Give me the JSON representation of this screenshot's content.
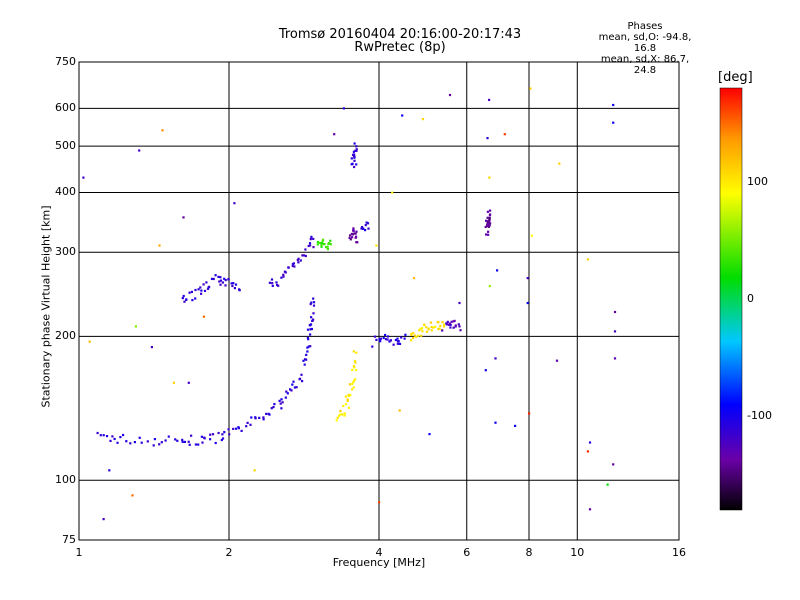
{
  "title_line1": "Tromsø 20160404 20:16:00-20:17:43",
  "title_line2": "RwPretec (8p)",
  "phases": {
    "heading": "Phases",
    "line_o": "mean, sd,O: -94.8, 16.8",
    "line_x": "mean, sd,X: 86.7, 24.8"
  },
  "colorbar": {
    "unit": "[deg]",
    "ticks": [
      "100",
      "0",
      "-100"
    ],
    "tick_values": [
      100,
      0,
      -100
    ],
    "range": [
      -180,
      180
    ]
  },
  "chart_data": {
    "type": "scatter",
    "xlabel": "Frequency [MHz]",
    "ylabel": "Stationary phase Virtual Height [km]",
    "xscale": "log",
    "yscale": "log",
    "xlim": [
      1,
      16
    ],
    "ylim": [
      75,
      750
    ],
    "x_ticks": [
      1,
      2,
      4,
      6,
      8,
      10,
      16
    ],
    "x_tick_labels": [
      "1",
      "2",
      "4",
      "6",
      "8",
      "10",
      "16"
    ],
    "y_ticks": [
      75,
      100,
      200,
      300,
      400,
      500,
      600,
      750
    ],
    "y_tick_labels": [
      "75",
      "100",
      "200",
      "300",
      "400",
      "500",
      "600",
      "750"
    ],
    "grid": true,
    "color_scale": "phase in degrees, rainbow from -180 (black/purple) to 180 (red)",
    "traces": [
      {
        "x": [
          1.1,
          1.2,
          1.4,
          1.6,
          1.75,
          1.9,
          2.05,
          2.25,
          2.45,
          2.6,
          2.75,
          2.85,
          2.9,
          2.92,
          2.95
        ],
        "y": [
          123,
          122,
          121,
          121,
          121,
          123,
          126,
          133,
          140,
          150,
          160,
          180,
          200,
          220,
          240
        ],
        "phase": -110
      },
      {
        "x": [
          1.6,
          1.7,
          1.8,
          1.9,
          2.0,
          2.1
        ],
        "y": [
          240,
          245,
          255,
          265,
          258,
          250
        ],
        "phase": -110
      },
      {
        "x": [
          2.4,
          2.55,
          2.7,
          2.85,
          2.95
        ],
        "y": [
          255,
          265,
          285,
          300,
          320
        ],
        "phase": -115
      },
      {
        "x": [
          3.0,
          3.1,
          3.2
        ],
        "y": [
          311,
          311,
          312
        ],
        "phase": 35
      },
      {
        "x": [
          3.3,
          3.4,
          3.5,
          3.55,
          3.6
        ],
        "y": [
          135,
          140,
          150,
          165,
          185
        ],
        "phase": 100
      },
      {
        "x": [
          3.5,
          3.55,
          3.6
        ],
        "y": [
          325,
          335,
          315
        ],
        "phase": -140
      },
      {
        "x": [
          3.55,
          3.58,
          3.6
        ],
        "y": [
          450,
          480,
          500
        ],
        "phase": -110
      },
      {
        "x": [
          3.7,
          3.8
        ],
        "y": [
          340,
          345
        ],
        "phase": -110
      },
      {
        "x": [
          3.9,
          4.1,
          4.3,
          4.5
        ],
        "y": [
          195,
          197,
          196,
          198
        ],
        "phase": -105
      },
      {
        "x": [
          4.6,
          4.8,
          5.0,
          5.2,
          5.4
        ],
        "y": [
          200,
          205,
          208,
          212,
          210
        ],
        "phase": 105
      },
      {
        "x": [
          5.4,
          5.6,
          5.8
        ],
        "y": [
          210,
          213,
          210
        ],
        "phase": -125
      },
      {
        "x": [
          6.6,
          6.62,
          6.65,
          6.68
        ],
        "y": [
          330,
          340,
          350,
          360
        ],
        "phase": -140
      }
    ],
    "points": [
      {
        "x": 1.02,
        "y": 430,
        "phase": -120
      },
      {
        "x": 1.05,
        "y": 195,
        "phase": 120
      },
      {
        "x": 1.12,
        "y": 83,
        "phase": -120
      },
      {
        "x": 1.15,
        "y": 105,
        "phase": -110
      },
      {
        "x": 1.28,
        "y": 93,
        "phase": 150
      },
      {
        "x": 1.3,
        "y": 210,
        "phase": 55
      },
      {
        "x": 1.32,
        "y": 490,
        "phase": -120
      },
      {
        "x": 1.4,
        "y": 190,
        "phase": -120
      },
      {
        "x": 1.45,
        "y": 310,
        "phase": 130
      },
      {
        "x": 1.47,
        "y": 540,
        "phase": 140
      },
      {
        "x": 1.55,
        "y": 160,
        "phase": 110
      },
      {
        "x": 1.62,
        "y": 355,
        "phase": -140
      },
      {
        "x": 1.66,
        "y": 160,
        "phase": -120
      },
      {
        "x": 1.78,
        "y": 220,
        "phase": 150
      },
      {
        "x": 2.05,
        "y": 380,
        "phase": -120
      },
      {
        "x": 2.25,
        "y": 105,
        "phase": 110
      },
      {
        "x": 3.25,
        "y": 530,
        "phase": -140
      },
      {
        "x": 3.4,
        "y": 600,
        "phase": -110
      },
      {
        "x": 3.95,
        "y": 310,
        "phase": 100
      },
      {
        "x": 4.0,
        "y": 90,
        "phase": 160
      },
      {
        "x": 4.25,
        "y": 400,
        "phase": 100
      },
      {
        "x": 4.4,
        "y": 140,
        "phase": 120
      },
      {
        "x": 4.45,
        "y": 580,
        "phase": -95
      },
      {
        "x": 4.7,
        "y": 265,
        "phase": 120
      },
      {
        "x": 4.9,
        "y": 570,
        "phase": 110
      },
      {
        "x": 5.05,
        "y": 125,
        "phase": -95
      },
      {
        "x": 5.55,
        "y": 640,
        "phase": -140
      },
      {
        "x": 5.8,
        "y": 235,
        "phase": -120
      },
      {
        "x": 6.55,
        "y": 170,
        "phase": -95
      },
      {
        "x": 6.65,
        "y": 625,
        "phase": -120
      },
      {
        "x": 6.6,
        "y": 520,
        "phase": -110
      },
      {
        "x": 6.66,
        "y": 430,
        "phase": 110
      },
      {
        "x": 6.67,
        "y": 255,
        "phase": 60
      },
      {
        "x": 6.9,
        "y": 275,
        "phase": -95
      },
      {
        "x": 6.85,
        "y": 132,
        "phase": -95
      },
      {
        "x": 6.85,
        "y": 180,
        "phase": -120
      },
      {
        "x": 7.15,
        "y": 530,
        "phase": 165
      },
      {
        "x": 7.5,
        "y": 130,
        "phase": -95
      },
      {
        "x": 7.95,
        "y": 265,
        "phase": -120
      },
      {
        "x": 7.95,
        "y": 235,
        "phase": -95
      },
      {
        "x": 8.0,
        "y": 138,
        "phase": 170
      },
      {
        "x": 8.05,
        "y": 660,
        "phase": 110
      },
      {
        "x": 8.1,
        "y": 325,
        "phase": 90
      },
      {
        "x": 9.1,
        "y": 178,
        "phase": -130
      },
      {
        "x": 9.2,
        "y": 460,
        "phase": 110
      },
      {
        "x": 10.5,
        "y": 290,
        "phase": 110
      },
      {
        "x": 10.6,
        "y": 120,
        "phase": -110
      },
      {
        "x": 10.5,
        "y": 115,
        "phase": 170
      },
      {
        "x": 10.6,
        "y": 87,
        "phase": -140
      },
      {
        "x": 11.5,
        "y": 98,
        "phase": 20
      },
      {
        "x": 11.8,
        "y": 610,
        "phase": -95
      },
      {
        "x": 11.8,
        "y": 560,
        "phase": -95
      },
      {
        "x": 11.9,
        "y": 225,
        "phase": -140
      },
      {
        "x": 11.9,
        "y": 205,
        "phase": -120
      },
      {
        "x": 11.9,
        "y": 180,
        "phase": -130
      },
      {
        "x": 11.8,
        "y": 108,
        "phase": -140
      }
    ]
  }
}
